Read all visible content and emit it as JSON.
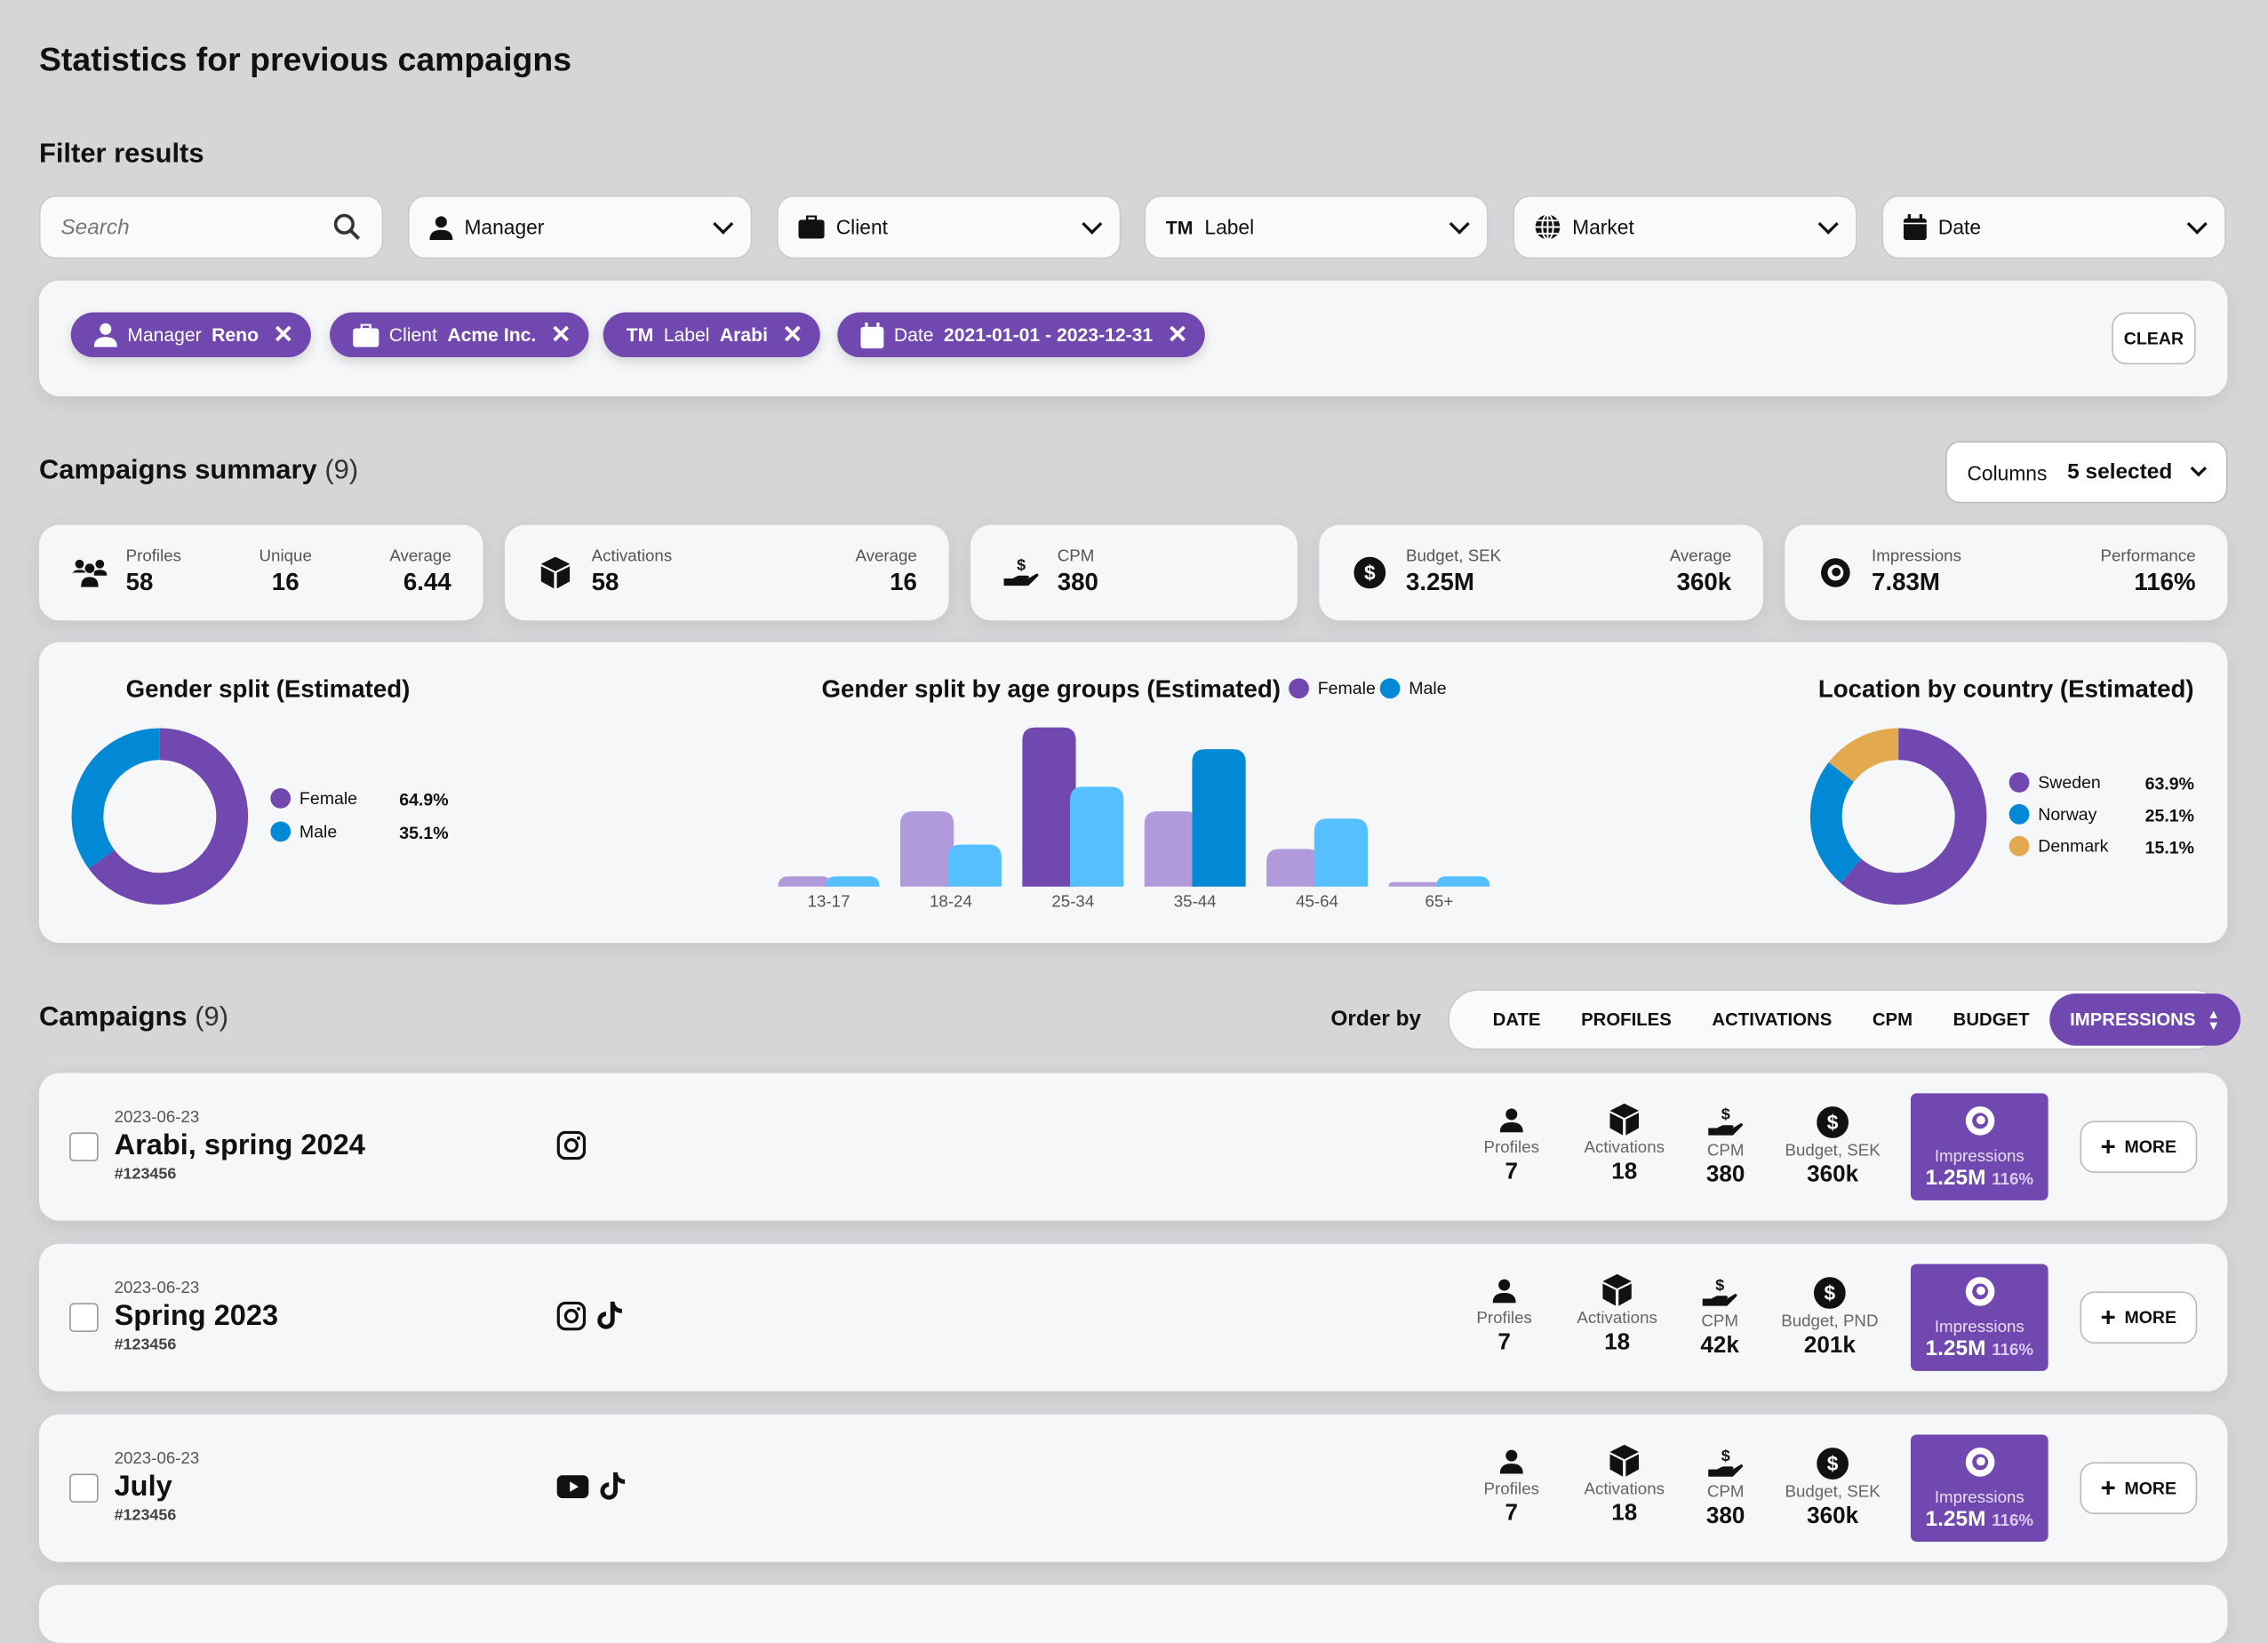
{
  "page": {
    "title": "Statistics for previous campaigns",
    "filter_heading": "Filter results"
  },
  "filters": [
    {
      "label": "Search",
      "icon": "search-icon",
      "type": "search"
    },
    {
      "label": "Manager",
      "icon": "user-icon"
    },
    {
      "label": "Client",
      "icon": "briefcase-icon"
    },
    {
      "label": "Label",
      "prefix": "TM",
      "icon": "tm-icon"
    },
    {
      "label": "Market",
      "icon": "globe-icon"
    },
    {
      "label": "Date",
      "icon": "calendar-icon"
    }
  ],
  "chips": [
    {
      "key": "Manager",
      "value": "Reno",
      "icon": "user-icon"
    },
    {
      "key": "Client",
      "value": "Acme Inc.",
      "icon": "briefcase-icon"
    },
    {
      "prefix": "TM",
      "key": "Label",
      "value": "Arabi"
    },
    {
      "key": "Date",
      "value": "2021-01-01 - 2023-12-31",
      "icon": "calendar-icon"
    }
  ],
  "clear_label": "CLEAR",
  "summary": {
    "title": "Campaigns summary",
    "count": "(9)",
    "columns_label": "Columns",
    "columns_value": "5 selected",
    "cards": [
      {
        "icon": "users-icon",
        "items": [
          {
            "k": "Profiles",
            "v": "58"
          },
          {
            "k": "Unique",
            "v": "16"
          },
          {
            "k": "Average",
            "v": "6.44"
          }
        ]
      },
      {
        "icon": "box-icon",
        "items": [
          {
            "k": "Activations",
            "v": "58"
          },
          {
            "k": "Average",
            "v": "16"
          }
        ]
      },
      {
        "icon": "hand-dollar-icon",
        "items": [
          {
            "k": "CPM",
            "v": "380"
          }
        ]
      },
      {
        "icon": "dollar-circle-icon",
        "items": [
          {
            "k": "Budget, SEK",
            "v": "3.25M"
          },
          {
            "k": "Average",
            "v": "360k"
          }
        ]
      },
      {
        "icon": "eye-icon",
        "items": [
          {
            "k": "Impressions",
            "v": "7.83M"
          },
          {
            "k": "Performance",
            "v": "116%"
          }
        ]
      }
    ]
  },
  "colors": {
    "accent": "#7048b0",
    "female": "#7048b0",
    "female_light": "#b09adc",
    "male": "#0189d6",
    "male_light": "#55bfff",
    "denmark": "#e3a94f"
  },
  "chart_data": [
    {
      "type": "pie",
      "title": "Gender split (Estimated)",
      "donut": true,
      "slices": [
        {
          "name": "Female",
          "value": 64.9,
          "label": "64.9%"
        },
        {
          "name": "Male",
          "value": 35.1,
          "label": "35.1%"
        }
      ]
    },
    {
      "type": "bar",
      "title": "Gender split by age groups (Estimated)",
      "legend": "top-right",
      "categories": [
        "13-17",
        "18-24",
        "25-34",
        "35-44",
        "45-64",
        "65+"
      ],
      "series": [
        {
          "name": "Female",
          "values": [
            7,
            52,
            110,
            52,
            26,
            3
          ]
        },
        {
          "name": "Male",
          "values": [
            7,
            29,
            69,
            95,
            47,
            7
          ]
        }
      ],
      "highlight": {
        "Female": "25-34",
        "Male": "35-44"
      }
    },
    {
      "type": "pie",
      "title": "Location by country (Estimated)",
      "donut": true,
      "slices": [
        {
          "name": "Sweden",
          "value": 63.9,
          "label": "63.9%"
        },
        {
          "name": "Norway",
          "value": 25.1,
          "label": "25.1%"
        },
        {
          "name": "Denmark",
          "value": 15.1,
          "label": "15.1%"
        }
      ]
    }
  ],
  "campaigns": {
    "title": "Campaigns",
    "count": "(9)",
    "order_label": "Order by",
    "order_options": [
      "DATE",
      "PROFILES",
      "ACTIVATIONS",
      "CPM",
      "BUDGET",
      "IMPRESSIONS"
    ],
    "order_active": "IMPRESSIONS",
    "more_label": "MORE",
    "rows": [
      {
        "date": "2023-06-23",
        "name": "Arabi, spring 2024",
        "id": "#123456",
        "social": [
          "instagram-icon"
        ],
        "profiles": "7",
        "activations": "18",
        "cpm": "380",
        "budget_label": "Budget, SEK",
        "budget": "360k",
        "impressions": "1.25M",
        "performance": "116%"
      },
      {
        "date": "2023-06-23",
        "name": "Spring 2023",
        "id": "#123456",
        "social": [
          "instagram-icon",
          "tiktok-icon"
        ],
        "profiles": "7",
        "activations": "18",
        "cpm": "42k",
        "budget_label": "Budget, PND",
        "budget": "201k",
        "impressions": "1.25M",
        "performance": "116%"
      },
      {
        "date": "2023-06-23",
        "name": "July",
        "id": "#123456",
        "social": [
          "youtube-icon",
          "tiktok-icon"
        ],
        "profiles": "7",
        "activations": "18",
        "cpm": "380",
        "budget_label": "Budget, SEK",
        "budget": "360k",
        "impressions": "1.25M",
        "performance": "116%"
      }
    ],
    "metric_labels": {
      "profiles": "Profiles",
      "activations": "Activations",
      "cpm": "CPM",
      "impressions": "Impressions"
    }
  }
}
